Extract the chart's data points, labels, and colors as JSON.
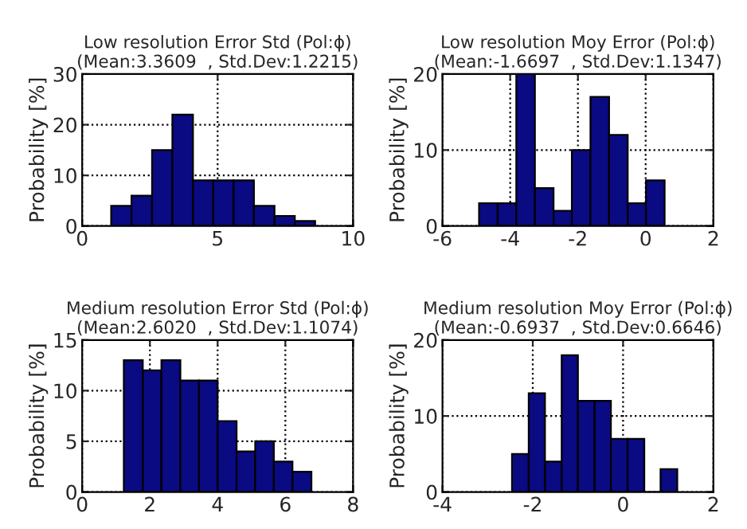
{
  "chart_data": [
    {
      "type": "histogram",
      "title": "Low resolution Error Std (Pol:ϕ)\n(Mean:3.3609  , Std.Dev:1.2215)",
      "ylabel": "Probability [%]",
      "color": "#0a0a82",
      "bins": [
        1.07,
        1.82,
        2.58,
        3.33,
        4.09,
        4.84,
        5.59,
        6.34,
        7.1,
        7.85,
        8.6
      ],
      "values": [
        4,
        6,
        15,
        22,
        9,
        9,
        9,
        4,
        2,
        1
      ],
      "xlim": [
        0,
        10
      ],
      "xticks": [
        0,
        5,
        10
      ],
      "ylim": [
        0,
        30
      ],
      "yticks": [
        0,
        10,
        20,
        30
      ],
      "grid": true
    },
    {
      "type": "histogram",
      "title": "Low resolution Moy Error (Pol:ϕ)\n(Mean:-1.6697  , Std.Dev:1.1347)",
      "ylabel": "Probability [%]",
      "color": "#0a0a82",
      "bins": [
        -4.92,
        -4.37,
        -3.82,
        -3.27,
        -2.72,
        -2.18,
        -1.63,
        -1.08,
        -0.53,
        0.01,
        0.56
      ],
      "values": [
        3,
        3,
        20,
        5,
        2,
        10,
        17,
        12,
        3,
        6
      ],
      "xlim": [
        -6,
        2
      ],
      "xticks": [
        {
          "value": -6,
          "label": "-6"
        },
        {
          "value": -4,
          "label": "-4"
        },
        {
          "value": -2,
          "label": "-2"
        },
        0,
        2
      ],
      "ylim": [
        0,
        20
      ],
      "yticks": [
        0,
        10,
        20
      ],
      "grid": true
    },
    {
      "type": "histogram",
      "title": "Medium resolution Error Std (Pol:ϕ)\n(Mean:2.6020  , Std.Dev:1.1074)",
      "ylabel": "Probability [%]",
      "color": "#0a0a82",
      "bins": [
        1.23,
        1.79,
        2.34,
        2.9,
        3.45,
        4.0,
        4.56,
        5.11,
        5.66,
        6.21,
        6.77
      ],
      "values": [
        13,
        12,
        13,
        11,
        11,
        7,
        4,
        5,
        3,
        2
      ],
      "xlim": [
        0,
        8
      ],
      "xticks": [
        0,
        2,
        4,
        6,
        8
      ],
      "ylim": [
        0,
        15
      ],
      "yticks": [
        0,
        5,
        10,
        15
      ],
      "grid": true
    },
    {
      "type": "histogram",
      "title": "Medium resolution Moy Error (Pol:ϕ)\n(Mean:-0.6937  , Std.Dev:0.6646)",
      "ylabel": "Probability [%]",
      "color": "#0a0a82",
      "bins": [
        -2.46,
        -2.09,
        -1.73,
        -1.36,
        -1.0,
        -0.63,
        -0.27,
        0.1,
        0.47,
        0.83,
        1.2
      ],
      "values": [
        5,
        13,
        4,
        18,
        12,
        12,
        7,
        7,
        0,
        3
      ],
      "xlim": [
        -4,
        2
      ],
      "xticks": [
        {
          "value": -4,
          "label": "-4"
        },
        {
          "value": -2,
          "label": "-2"
        },
        0,
        2
      ],
      "ylim": [
        0,
        20
      ],
      "yticks": [
        0,
        10,
        20
      ],
      "grid": true
    }
  ]
}
